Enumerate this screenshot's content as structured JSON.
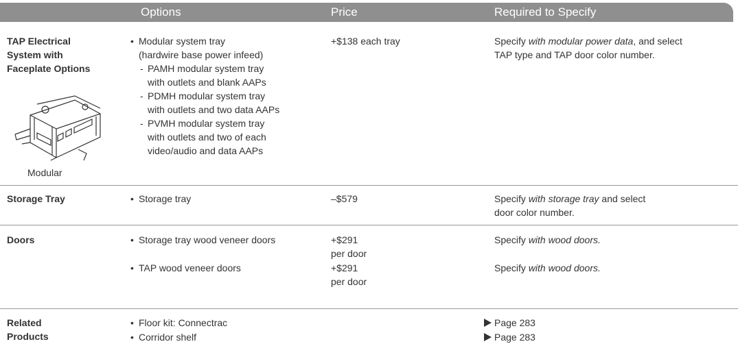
{
  "header": {
    "options": "Options",
    "price": "Price",
    "required": "Required to Specify"
  },
  "rows": [
    {
      "label": [
        "TAP Electrical",
        "System with",
        "Faceplate Options"
      ],
      "image_caption": "Modular",
      "items": [
        {
          "option": [
            "Modular system tray",
            "(hardwire base power infeed)"
          ],
          "sub": [
            [
              "PAMH modular system tray",
              "with outlets and blank AAPs"
            ],
            [
              "PDMH modular system tray",
              "with outlets and two data AAPs"
            ],
            [
              "PVMH modular system tray",
              "with outlets and two of each",
              "video/audio and data AAPs"
            ]
          ],
          "price": [
            "+$138 each tray"
          ],
          "required": [
            [
              "Specify ",
              {
                "text": "with modular power data",
                "italic": true
              },
              ", and select"
            ],
            [
              "TAP type and TAP door color number."
            ]
          ]
        }
      ]
    },
    {
      "label": [
        "Storage Tray"
      ],
      "items": [
        {
          "option": [
            "Storage tray"
          ],
          "price": [
            "–$579"
          ],
          "required": [
            [
              "Specify ",
              {
                "text": "with storage tray",
                "italic": true
              },
              " and select"
            ],
            [
              "door color number."
            ]
          ]
        }
      ]
    },
    {
      "label": [
        "Doors"
      ],
      "items": [
        {
          "option": [
            "Storage tray wood veneer doors"
          ],
          "price": [
            "+$291",
            "per door"
          ],
          "required": [
            [
              "Specify ",
              {
                "text": "with wood doors.",
                "italic": true
              }
            ]
          ]
        },
        {
          "option": [
            "TAP wood veneer doors"
          ],
          "price": [
            "+$291",
            "per door"
          ],
          "required": [
            [
              "Specify ",
              {
                "text": "with wood doors.",
                "italic": true
              }
            ]
          ]
        }
      ]
    },
    {
      "label": [
        "Related",
        "Products"
      ],
      "items": [
        {
          "option": [
            "Floor kit: Connectrac"
          ],
          "link": "Page 283"
        },
        {
          "option": [
            "Corridor shelf"
          ],
          "link": "Page 283"
        }
      ]
    }
  ]
}
